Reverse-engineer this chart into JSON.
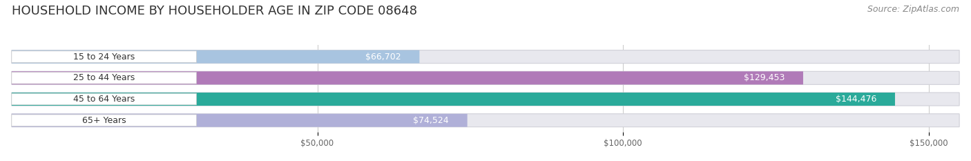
{
  "title": "HOUSEHOLD INCOME BY HOUSEHOLDER AGE IN ZIP CODE 08648",
  "source": "Source: ZipAtlas.com",
  "categories": [
    "15 to 24 Years",
    "25 to 44 Years",
    "45 to 64 Years",
    "65+ Years"
  ],
  "values": [
    66702,
    129453,
    144476,
    74524
  ],
  "bar_colors": [
    "#a8c4e0",
    "#b07ab8",
    "#2aaa9a",
    "#b0b0d8"
  ],
  "bar_bg_color": "#e8e8ee",
  "background_color": "#ffffff",
  "xmin": 0,
  "xmax": 155000,
  "xticks": [
    50000,
    100000,
    150000
  ],
  "xtick_labels": [
    "$50,000",
    "$100,000",
    "$150,000"
  ],
  "title_fontsize": 13,
  "source_fontsize": 9,
  "bar_label_fontsize": 9,
  "value_fontsize": 9
}
